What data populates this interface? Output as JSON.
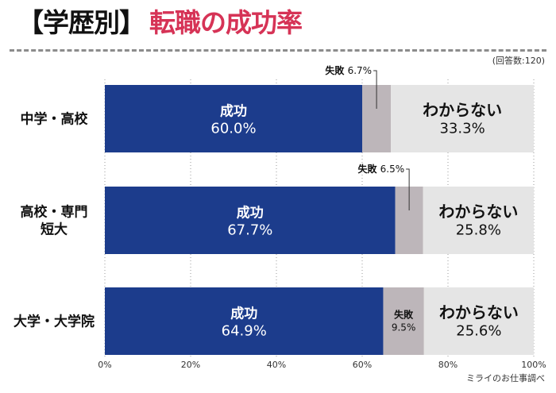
{
  "title": {
    "prefix": "【学歴別】",
    "main": "転職の成功率"
  },
  "colors": {
    "title_accent": "#d63356",
    "success": "#1c3c8c",
    "failure": "#bdb6ba",
    "unknown": "#e5e5e5",
    "divider": "#8c8c8c"
  },
  "chart_data": {
    "type": "bar",
    "orientation": "horizontal",
    "stacked": true,
    "title": "【学歴別】転職の成功率",
    "respondents_note": "(回答数:120)",
    "source_note": "ミライのお仕事調べ",
    "categories": [
      [
        "中学・高校"
      ],
      [
        "高校・専門",
        "短大"
      ],
      [
        "大学・大学院"
      ]
    ],
    "series": [
      {
        "name": "成功",
        "values": [
          60.0,
          67.7,
          64.9
        ],
        "labels": [
          "60.0%",
          "67.7%",
          "64.9%"
        ]
      },
      {
        "name": "失敗",
        "values": [
          6.7,
          6.5,
          9.5
        ],
        "labels": [
          "6.7%",
          "6.5%",
          "9.5%"
        ]
      },
      {
        "name": "わからない",
        "values": [
          33.3,
          25.8,
          25.6
        ],
        "labels": [
          "33.3%",
          "25.8%",
          "25.6%"
        ]
      }
    ],
    "xlim": [
      0,
      100
    ],
    "xticks": [
      0,
      20,
      40,
      60,
      80,
      100
    ],
    "xtick_labels": [
      "0%",
      "20%",
      "40%",
      "60%",
      "80%",
      "100%"
    ],
    "grid": true,
    "legend": "none"
  }
}
